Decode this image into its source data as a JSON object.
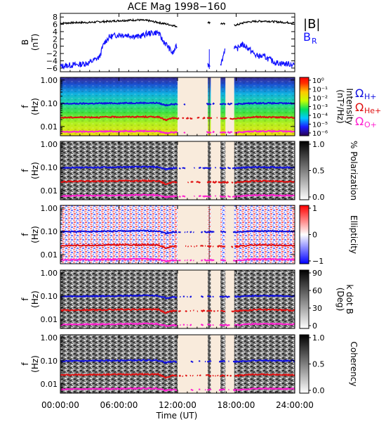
{
  "title": "ACE Mag 1998−160",
  "x_axis": {
    "label": "Time (UT)",
    "ticks": [
      "00:00:00",
      "06:00:00",
      "12:00:00",
      "18:00:00",
      "24:00:00"
    ],
    "range_hours": [
      0,
      24
    ]
  },
  "colors": {
    "H": "#1010e0",
    "He": "#e01010",
    "O": "#ff20d0",
    "B": "#000000",
    "BR": "#1010ff",
    "gap": "#f9ebdc"
  },
  "data_gaps_hours": [
    [
      12.0,
      15.1
    ],
    [
      15.4,
      16.4
    ],
    [
      16.9,
      17.8
    ]
  ],
  "chart_data": [
    {
      "type": "line",
      "panel": "magnetic-field",
      "ylabel": "B",
      "yunit": "(nT)",
      "ylim": [
        -7,
        9
      ],
      "yticks": [
        "8",
        "6",
        "4",
        "2",
        "0",
        "−2",
        "−4",
        "−6"
      ],
      "legend": [
        "|B|",
        "B",
        "R"
      ],
      "series": [
        {
          "name": "|B|",
          "x": [
            0,
            1,
            2,
            3,
            4,
            5,
            6,
            7,
            8,
            9,
            10,
            11,
            11.8,
            12.5,
            13.5,
            14.5,
            15.2,
            16.0,
            17.0,
            18,
            19,
            20,
            21,
            22,
            23,
            24
          ],
          "values": [
            6.3,
            6.4,
            6.5,
            6.5,
            6.7,
            6.8,
            7.0,
            7.1,
            7.2,
            7.0,
            6.5,
            6.0,
            5.5,
            5.3,
            5.8,
            6.3,
            6.5,
            6.4,
            6.0,
            5.8,
            6.6,
            6.8,
            6.9,
            6.7,
            6.5,
            6.4
          ]
        },
        {
          "name": "B R",
          "x": [
            0,
            1,
            2,
            3,
            4,
            4.5,
            5,
            6,
            7,
            8,
            9,
            10,
            10.5,
            11,
            11.5,
            12,
            12.5,
            13.5,
            14.5,
            15.2,
            16.5,
            17,
            17.5,
            18,
            18.5,
            19,
            20,
            21,
            22,
            23,
            24
          ],
          "values": [
            -5.5,
            -5.2,
            -5.0,
            -4.5,
            -3.0,
            1.0,
            2.5,
            3.2,
            3.0,
            2.6,
            3.5,
            3.8,
            1.5,
            0.0,
            -2.0,
            0.5,
            -2.5,
            -4.0,
            -5.5,
            -5.0,
            -4.5,
            1.0,
            1.2,
            -1.0,
            0.5,
            0.0,
            -2.5,
            -3.0,
            -4.5,
            -4.8,
            -5.0
          ]
        }
      ]
    },
    {
      "type": "heatmap",
      "panel": "intensity",
      "ylabel": "f",
      "yunit": "(Hz)",
      "ylog": true,
      "ylim": [
        0.004,
        1.3
      ],
      "yticks": [
        "1.00",
        "0.10",
        "0.01"
      ],
      "colorbar": {
        "label": "Intensity",
        "unit": "(nT²/Hz)",
        "ticks": [
          "10⁰",
          "10⁻¹",
          "10⁻²",
          "10⁻³",
          "10⁻⁴",
          "10⁻⁵",
          "10⁻⁶"
        ]
      },
      "side_labels": [
        "Ω",
        "H+",
        "Ω",
        "He+",
        "Ω",
        "O+"
      ]
    },
    {
      "type": "heatmap",
      "panel": "polarization",
      "ylabel": "f",
      "yunit": "(Hz)",
      "ylog": true,
      "ylim": [
        0.004,
        1.3
      ],
      "yticks": [
        "1.00",
        "0.10",
        "0.01"
      ],
      "colorbar": {
        "label": "% Polarization",
        "ticks": [
          "1.0",
          "0.5",
          "0.0"
        ]
      }
    },
    {
      "type": "heatmap",
      "panel": "ellipticity",
      "ylabel": "f",
      "yunit": "(Hz)",
      "ylog": true,
      "ylim": [
        0.004,
        1.3
      ],
      "yticks": [
        "1.00",
        "0.10",
        "0.01"
      ],
      "colorbar": {
        "label": "Ellipticity",
        "ticks": [
          "1",
          "0",
          "−1"
        ]
      }
    },
    {
      "type": "heatmap",
      "panel": "k-dot-b",
      "ylabel": "f",
      "yunit": "(Hz)",
      "ylog": true,
      "ylim": [
        0.004,
        1.3
      ],
      "yticks": [
        "1.00",
        "0.10",
        "0.01"
      ],
      "colorbar": {
        "label": "k dot B",
        "unit": "(Deg)",
        "ticks": [
          "90",
          "60",
          "30",
          "0"
        ]
      }
    },
    {
      "type": "heatmap",
      "panel": "coherency",
      "ylabel": "f",
      "yunit": "(Hz)",
      "ylog": true,
      "ylim": [
        0.004,
        1.3
      ],
      "yticks": [
        "1.00",
        "0.10",
        "0.01"
      ],
      "colorbar": {
        "label": "Coherency",
        "ticks": [
          "1.0",
          "0.5",
          "0.0"
        ]
      }
    }
  ],
  "gyro_lines": {
    "x": [
      0,
      2,
      4,
      6,
      8,
      10,
      10.8,
      11.5,
      12,
      14,
      16,
      17.8,
      20,
      22,
      24
    ],
    "H": [
      0.095,
      0.097,
      0.099,
      0.101,
      0.104,
      0.103,
      0.082,
      0.092,
      0.09,
      0.092,
      0.094,
      0.092,
      0.102,
      0.1,
      0.098
    ],
    "He": [
      0.024,
      0.025,
      0.025,
      0.026,
      0.026,
      0.026,
      0.019,
      0.023,
      0.022,
      0.023,
      0.023,
      0.022,
      0.026,
      0.025,
      0.024
    ],
    "O": [
      0.0058,
      0.006,
      0.0061,
      0.0062,
      0.0064,
      0.0063,
      0.0052,
      0.0057,
      0.0055,
      0.0056,
      0.0057,
      0.0055,
      0.0063,
      0.0062,
      0.0061
    ]
  }
}
